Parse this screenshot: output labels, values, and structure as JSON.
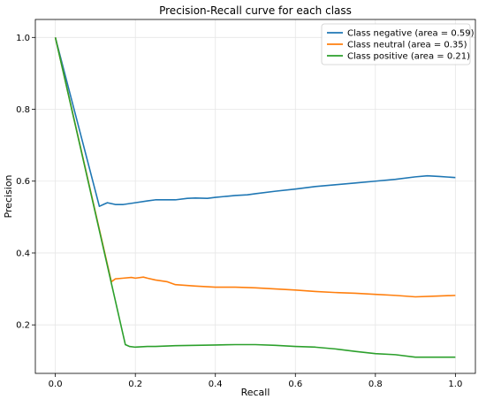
{
  "chart_data": {
    "type": "line",
    "title": "Precision-Recall curve for each class",
    "xlabel": "Recall",
    "ylabel": "Precision",
    "xlim": [
      -0.05,
      1.05
    ],
    "ylim": [
      0.065,
      1.05
    ],
    "xticks": [
      0.0,
      0.2,
      0.4,
      0.6,
      0.8,
      1.0
    ],
    "xtick_labels": [
      "0.0",
      "0.2",
      "0.4",
      "0.6",
      "0.8",
      "1.0"
    ],
    "yticks": [
      0.2,
      0.4,
      0.6,
      0.8,
      1.0
    ],
    "ytick_labels": [
      "0.2",
      "0.4",
      "0.6",
      "0.8",
      "1.0"
    ],
    "grid": true,
    "legend_position": "top-right",
    "series": [
      {
        "name": "Class negative (area = 0.59)",
        "color": "#1f77b4",
        "x": [
          0.0,
          0.11,
          0.12,
          0.13,
          0.15,
          0.17,
          0.2,
          0.23,
          0.25,
          0.28,
          0.3,
          0.33,
          0.35,
          0.38,
          0.4,
          0.43,
          0.45,
          0.48,
          0.5,
          0.55,
          0.6,
          0.65,
          0.7,
          0.75,
          0.8,
          0.85,
          0.9,
          0.93,
          0.96,
          1.0
        ],
        "y": [
          1.0,
          0.53,
          0.535,
          0.54,
          0.535,
          0.535,
          0.54,
          0.545,
          0.548,
          0.548,
          0.548,
          0.552,
          0.553,
          0.552,
          0.555,
          0.558,
          0.56,
          0.562,
          0.565,
          0.572,
          0.578,
          0.585,
          0.59,
          0.595,
          0.6,
          0.605,
          0.612,
          0.615,
          0.613,
          0.61
        ]
      },
      {
        "name": "Class neutral (area = 0.35)",
        "color": "#ff7f0e",
        "x": [
          0.0,
          0.14,
          0.15,
          0.17,
          0.19,
          0.2,
          0.22,
          0.23,
          0.25,
          0.28,
          0.3,
          0.35,
          0.4,
          0.45,
          0.5,
          0.55,
          0.6,
          0.65,
          0.7,
          0.75,
          0.8,
          0.85,
          0.9,
          0.95,
          1.0
        ],
        "y": [
          1.0,
          0.32,
          0.328,
          0.33,
          0.332,
          0.33,
          0.333,
          0.33,
          0.325,
          0.32,
          0.312,
          0.308,
          0.305,
          0.305,
          0.303,
          0.3,
          0.297,
          0.293,
          0.29,
          0.288,
          0.285,
          0.282,
          0.278,
          0.28,
          0.282
        ]
      },
      {
        "name": "Class positive (area = 0.21)",
        "color": "#2ca02c",
        "x": [
          0.0,
          0.175,
          0.185,
          0.2,
          0.23,
          0.25,
          0.3,
          0.35,
          0.4,
          0.45,
          0.5,
          0.55,
          0.6,
          0.65,
          0.7,
          0.75,
          0.8,
          0.85,
          0.9,
          0.95,
          1.0
        ],
        "y": [
          1.0,
          0.145,
          0.14,
          0.138,
          0.14,
          0.14,
          0.142,
          0.143,
          0.144,
          0.145,
          0.145,
          0.143,
          0.14,
          0.138,
          0.133,
          0.126,
          0.12,
          0.117,
          0.11,
          0.11,
          0.11
        ]
      }
    ]
  }
}
